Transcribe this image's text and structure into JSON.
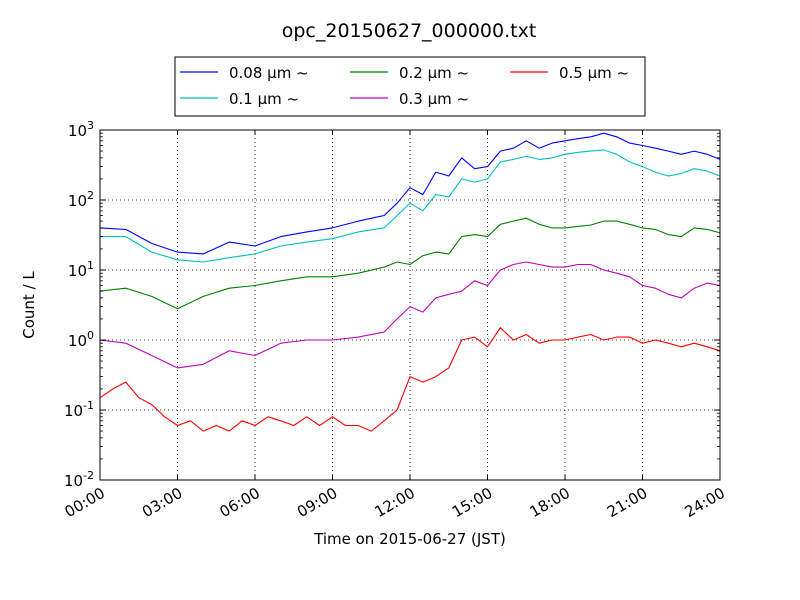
{
  "chart_data": {
    "type": "line",
    "title": "opc_20150627_000000.txt",
    "xlabel": "Time on 2015-06-27 (JST)",
    "ylabel": "Count / L",
    "x_unit": "hour of day",
    "xlim": [
      0,
      24
    ],
    "ylim": [
      0.01,
      1000
    ],
    "yscale": "log",
    "grid": true,
    "legend_position": "top-center",
    "x_ticks": [
      "00:00",
      "03:00",
      "06:00",
      "09:00",
      "12:00",
      "15:00",
      "18:00",
      "21:00",
      "24:00"
    ],
    "y_ticks": [
      {
        "value": 0.01,
        "base": "10",
        "exp": "-2"
      },
      {
        "value": 0.1,
        "base": "10",
        "exp": "-1"
      },
      {
        "value": 1,
        "base": "10",
        "exp": "0"
      },
      {
        "value": 10,
        "base": "10",
        "exp": "1"
      },
      {
        "value": 100,
        "base": "10",
        "exp": "2"
      },
      {
        "value": 1000,
        "base": "10",
        "exp": "3"
      }
    ],
    "series": [
      {
        "name": "0.08 μm ~",
        "color": "#0000ff",
        "x": [
          0,
          1,
          2,
          3,
          4,
          5,
          6,
          7,
          8,
          9,
          10,
          11,
          11.5,
          12,
          12.5,
          13,
          13.5,
          14,
          14.5,
          15,
          15.5,
          16,
          16.5,
          17,
          17.5,
          18,
          18.5,
          19,
          19.5,
          20,
          20.5,
          21,
          21.5,
          22,
          22.5,
          23,
          23.5,
          24
        ],
        "y": [
          40,
          38,
          24,
          18,
          17,
          25,
          22,
          30,
          35,
          40,
          50,
          60,
          90,
          150,
          120,
          250,
          220,
          400,
          280,
          300,
          500,
          550,
          700,
          550,
          650,
          700,
          750,
          800,
          900,
          800,
          650,
          600,
          550,
          500,
          450,
          500,
          450,
          380
        ]
      },
      {
        "name": "0.1 μm ~",
        "color": "#00bfbf",
        "x": [
          0,
          1,
          2,
          3,
          4,
          5,
          6,
          7,
          8,
          9,
          10,
          11,
          11.5,
          12,
          12.5,
          13,
          13.5,
          14,
          14.5,
          15,
          15.5,
          16,
          16.5,
          17,
          17.5,
          18,
          18.5,
          19,
          19.5,
          20,
          20.5,
          21,
          21.5,
          22,
          22.5,
          23,
          23.5,
          24
        ],
        "y": [
          30,
          30,
          18,
          14,
          13,
          15,
          17,
          22,
          25,
          28,
          35,
          40,
          60,
          90,
          70,
          120,
          110,
          200,
          180,
          200,
          350,
          380,
          420,
          380,
          400,
          450,
          480,
          500,
          520,
          450,
          350,
          300,
          250,
          220,
          240,
          280,
          260,
          220
        ]
      },
      {
        "name": "0.2 μm ~",
        "color": "#008000",
        "x": [
          0,
          1,
          2,
          3,
          4,
          5,
          6,
          7,
          8,
          9,
          10,
          11,
          11.5,
          12,
          12.5,
          13,
          13.5,
          14,
          14.5,
          15,
          15.5,
          16,
          16.5,
          17,
          17.5,
          18,
          18.5,
          19,
          19.5,
          20,
          20.5,
          21,
          21.5,
          22,
          22.5,
          23,
          23.5,
          24
        ],
        "y": [
          5,
          5.5,
          4.2,
          2.8,
          4.2,
          5.5,
          6,
          7,
          8,
          8,
          9,
          11,
          13,
          12,
          16,
          18,
          17,
          30,
          32,
          30,
          45,
          50,
          55,
          45,
          40,
          40,
          42,
          44,
          50,
          50,
          45,
          40,
          38,
          32,
          30,
          40,
          38,
          34
        ]
      },
      {
        "name": "0.3 μm ~",
        "color": "#bf00bf",
        "x": [
          0,
          1,
          2,
          3,
          4,
          5,
          6,
          7,
          8,
          9,
          10,
          11,
          11.5,
          12,
          12.5,
          13,
          13.5,
          14,
          14.5,
          15,
          15.5,
          16,
          16.5,
          17,
          17.5,
          18,
          18.5,
          19,
          19.5,
          20,
          20.5,
          21,
          21.5,
          22,
          22.5,
          23,
          23.5,
          24
        ],
        "y": [
          1,
          0.9,
          0.6,
          0.4,
          0.45,
          0.7,
          0.6,
          0.9,
          1,
          1,
          1.1,
          1.3,
          2,
          3,
          2.5,
          4,
          4.5,
          5,
          7,
          6,
          10,
          12,
          13,
          12,
          11,
          11,
          12,
          12,
          10,
          9,
          8,
          6,
          5.5,
          4.5,
          4,
          5.5,
          6.5,
          6
        ]
      },
      {
        "name": "0.5 μm ~",
        "color": "#ff0000",
        "x": [
          0,
          0.5,
          1,
          1.5,
          2,
          2.5,
          3,
          3.5,
          4,
          4.5,
          5,
          5.5,
          6,
          6.5,
          7,
          7.5,
          8,
          8.5,
          9,
          9.5,
          10,
          10.5,
          11,
          11.5,
          12,
          12.5,
          13,
          13.5,
          14,
          14.5,
          15,
          15.5,
          16,
          16.5,
          17,
          17.5,
          18,
          18.5,
          19,
          19.5,
          20,
          20.5,
          21,
          21.5,
          22,
          22.5,
          23,
          23.5,
          24
        ],
        "y": [
          0.15,
          0.2,
          0.25,
          0.15,
          0.12,
          0.08,
          0.06,
          0.07,
          0.05,
          0.06,
          0.05,
          0.07,
          0.06,
          0.08,
          0.07,
          0.06,
          0.08,
          0.06,
          0.08,
          0.06,
          0.06,
          0.05,
          0.07,
          0.1,
          0.3,
          0.25,
          0.3,
          0.4,
          1,
          1.1,
          0.8,
          1.5,
          1,
          1.2,
          0.9,
          1,
          1,
          1.1,
          1.2,
          1,
          1.1,
          1.1,
          0.9,
          1,
          0.9,
          0.8,
          0.9,
          0.8,
          0.7
        ]
      }
    ]
  }
}
